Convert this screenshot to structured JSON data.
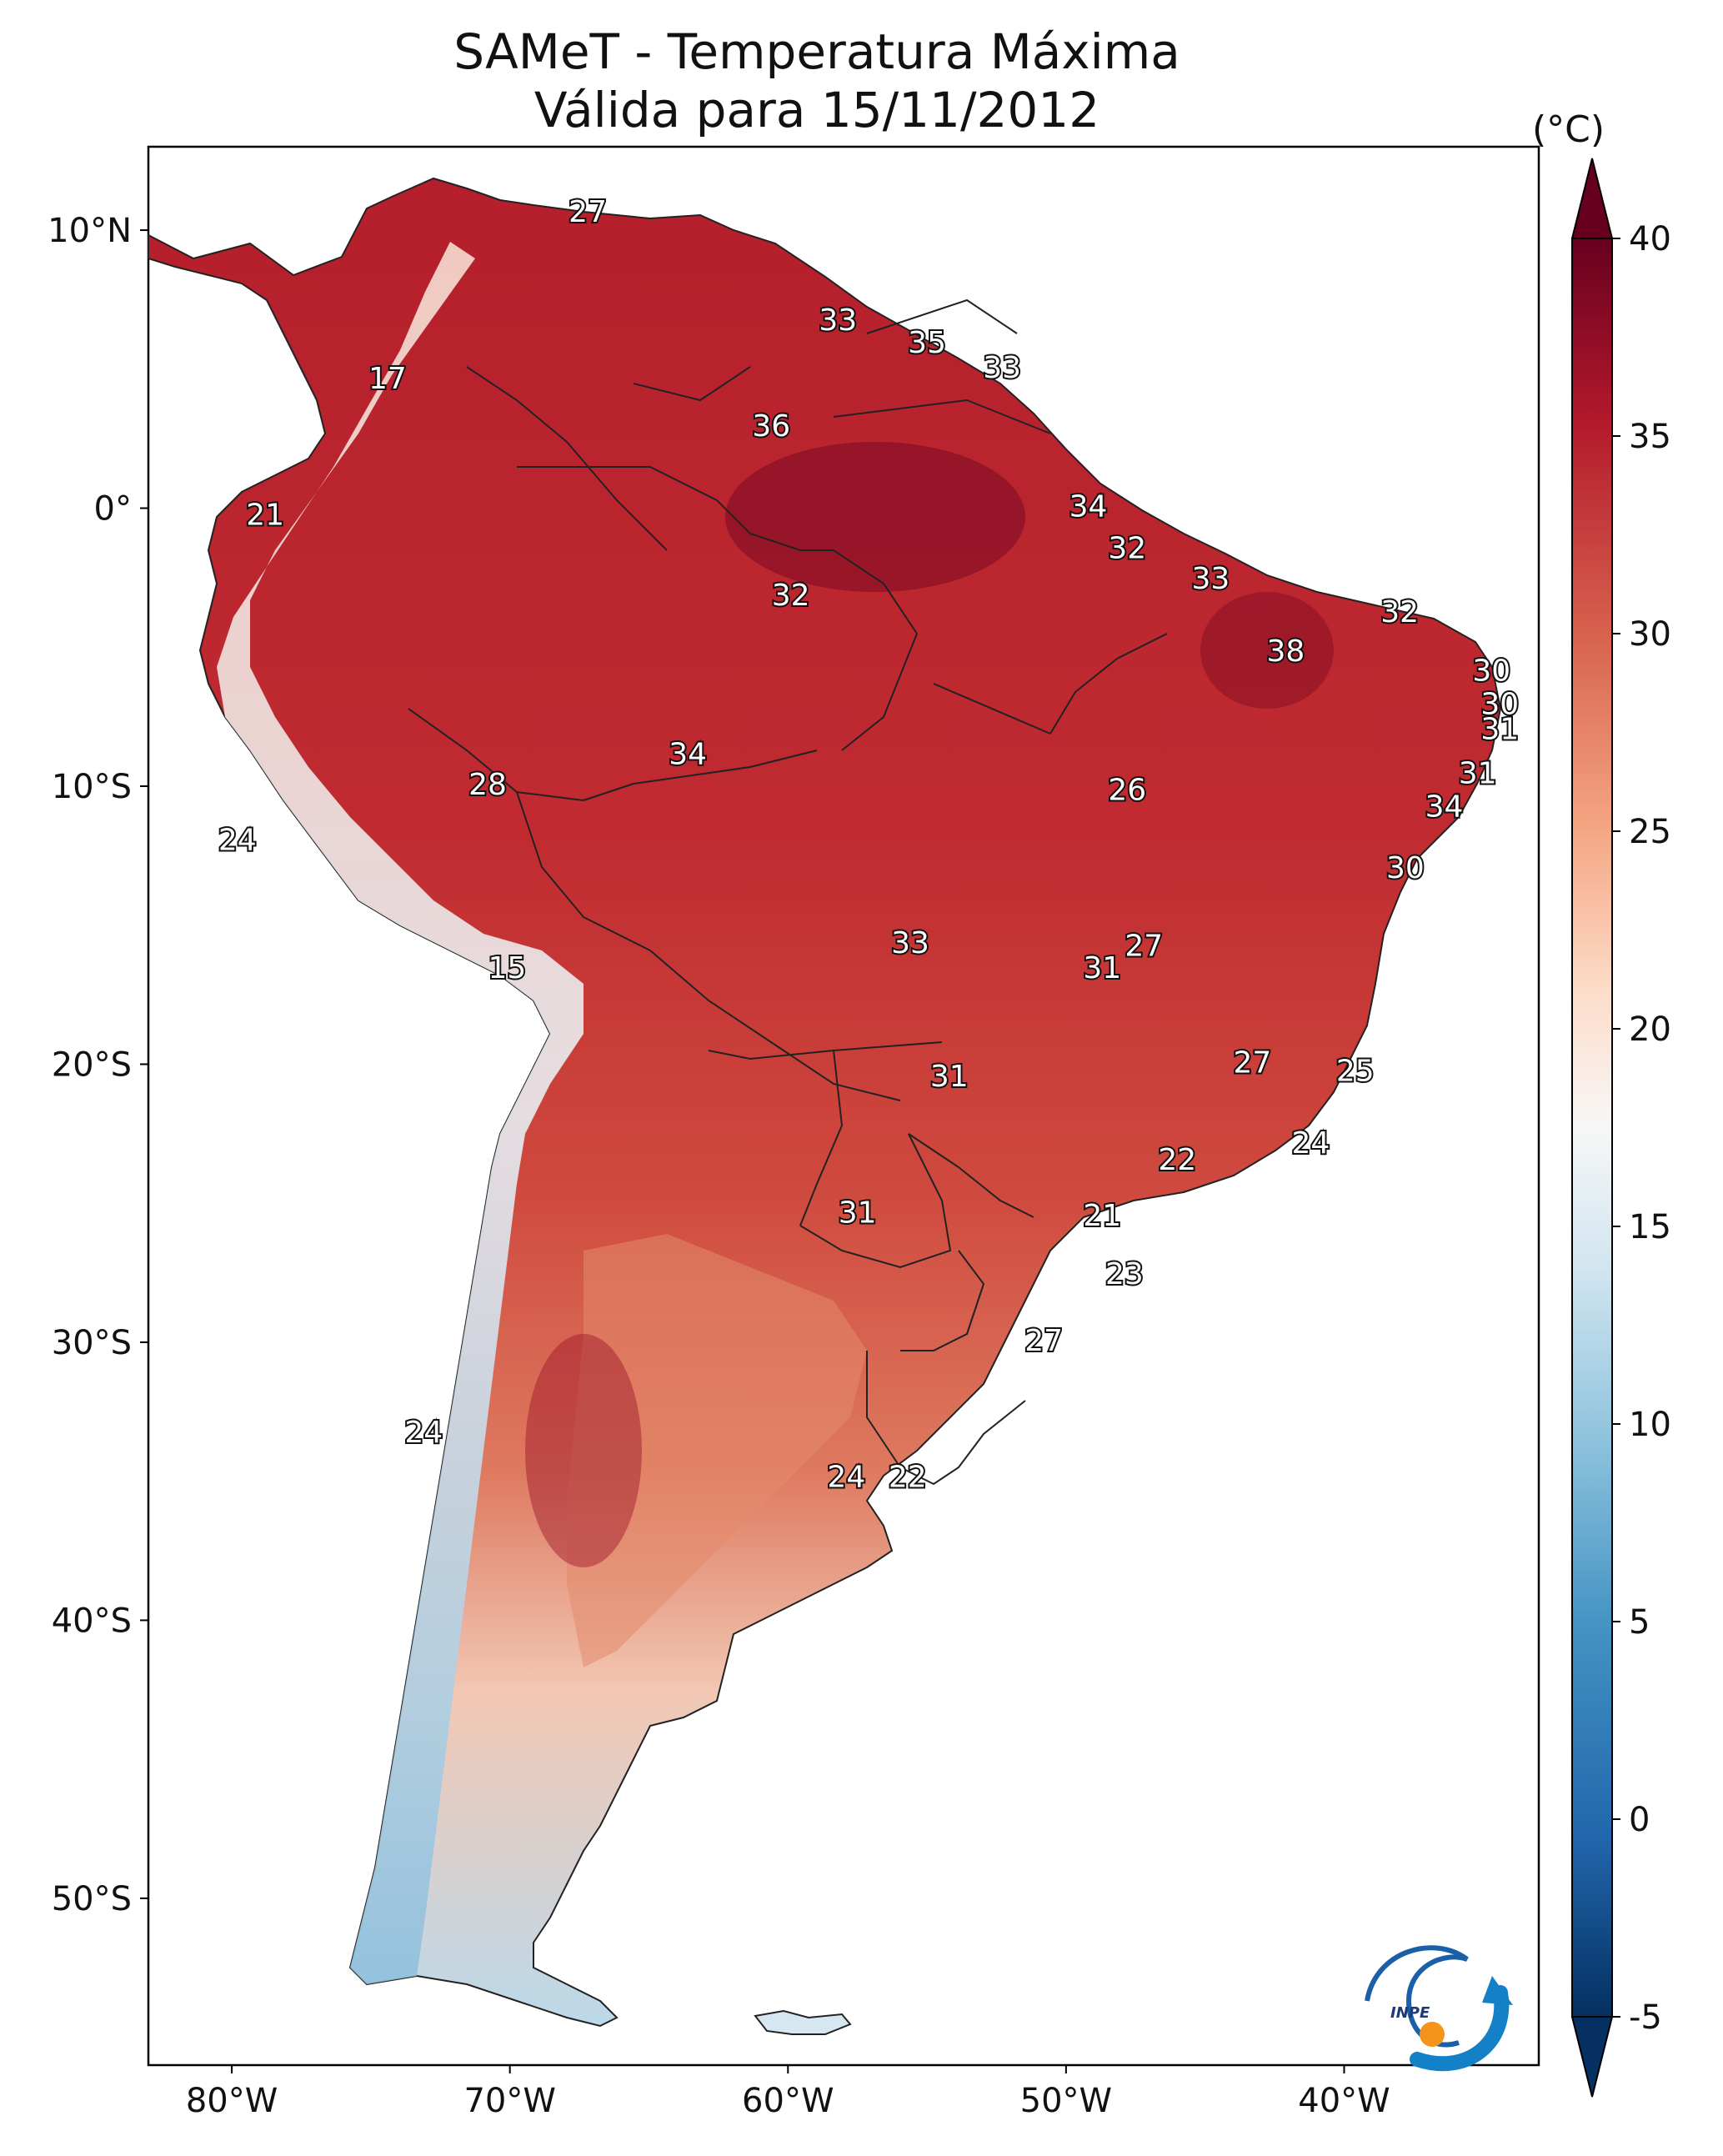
{
  "title": {
    "line1": "SAMeT - Temperatura Máxima",
    "line2": "Válida para 15/11/2012"
  },
  "colorbar": {
    "unit": "(°C)",
    "ticks": [
      "40",
      "35",
      "30",
      "25",
      "20",
      "15",
      "10",
      "5",
      "0",
      "-5"
    ],
    "tick_values": [
      40,
      35,
      30,
      25,
      20,
      15,
      10,
      5,
      0,
      -5
    ],
    "range": [
      -5,
      40
    ],
    "colors_high_to_low": [
      "#67001f",
      "#b2182b",
      "#d6604d",
      "#f4a582",
      "#fddbc7",
      "#f7f7f7",
      "#d1e5f0",
      "#92c5de",
      "#4393c3",
      "#2166ac",
      "#053061"
    ]
  },
  "axes": {
    "lon_ticks": [
      "80°W",
      "70°W",
      "60°W",
      "50°W",
      "40°W"
    ],
    "lon_values": [
      -80,
      -70,
      -60,
      -50,
      -40
    ],
    "lat_ticks": [
      "10°N",
      "0°",
      "10°S",
      "20°S",
      "30°S",
      "40°S",
      "50°S"
    ],
    "lat_values": [
      10,
      0,
      -10,
      -20,
      -30,
      -40,
      -50
    ],
    "lon_range": [
      -83,
      -33
    ],
    "lat_range": [
      -56,
      13
    ]
  },
  "map_labels": [
    {
      "value": "27",
      "lon": -67.2,
      "lat": 10.6
    },
    {
      "value": "17",
      "lon": -74.4,
      "lat": 4.6
    },
    {
      "value": "21",
      "lon": -78.8,
      "lat": -0.3
    },
    {
      "value": "33",
      "lon": -58.2,
      "lat": 6.7
    },
    {
      "value": "35",
      "lon": -55.0,
      "lat": 5.9
    },
    {
      "value": "33",
      "lon": -52.3,
      "lat": 5.0
    },
    {
      "value": "36",
      "lon": -60.6,
      "lat": 2.9
    },
    {
      "value": "34",
      "lon": -49.2,
      "lat": 0.0
    },
    {
      "value": "32",
      "lon": -47.8,
      "lat": -1.5
    },
    {
      "value": "33",
      "lon": -44.8,
      "lat": -2.6
    },
    {
      "value": "32",
      "lon": -59.9,
      "lat": -3.2
    },
    {
      "value": "32",
      "lon": -38.0,
      "lat": -3.8
    },
    {
      "value": "38",
      "lon": -42.1,
      "lat": -5.2
    },
    {
      "value": "30",
      "lon": -34.7,
      "lat": -5.9
    },
    {
      "value": "30",
      "lon": -34.4,
      "lat": -7.1
    },
    {
      "value": "31",
      "lon": -34.4,
      "lat": -8.0
    },
    {
      "value": "34",
      "lon": -63.6,
      "lat": -8.9
    },
    {
      "value": "28",
      "lon": -70.8,
      "lat": -10.0
    },
    {
      "value": "26",
      "lon": -47.8,
      "lat": -10.2
    },
    {
      "value": "31",
      "lon": -35.2,
      "lat": -9.6
    },
    {
      "value": "34",
      "lon": -36.4,
      "lat": -10.8
    },
    {
      "value": "24",
      "lon": -79.8,
      "lat": -12.0
    },
    {
      "value": "30",
      "lon": -37.8,
      "lat": -13.0
    },
    {
      "value": "33",
      "lon": -55.6,
      "lat": -15.7
    },
    {
      "value": "27",
      "lon": -47.2,
      "lat": -15.8
    },
    {
      "value": "31",
      "lon": -48.7,
      "lat": -16.6
    },
    {
      "value": "15",
      "lon": -70.1,
      "lat": -16.6
    },
    {
      "value": "27",
      "lon": -43.3,
      "lat": -20.0
    },
    {
      "value": "25",
      "lon": -39.6,
      "lat": -20.3
    },
    {
      "value": "31",
      "lon": -54.2,
      "lat": -20.5
    },
    {
      "value": "24",
      "lon": -41.2,
      "lat": -22.9
    },
    {
      "value": "22",
      "lon": -46.0,
      "lat": -23.5
    },
    {
      "value": "21",
      "lon": -48.7,
      "lat": -25.5
    },
    {
      "value": "31",
      "lon": -57.5,
      "lat": -25.4
    },
    {
      "value": "23",
      "lon": -47.9,
      "lat": -27.6
    },
    {
      "value": "27",
      "lon": -50.8,
      "lat": -30.0
    },
    {
      "value": "24",
      "lon": -73.1,
      "lat": -33.3
    },
    {
      "value": "24",
      "lon": -57.9,
      "lat": -34.9
    },
    {
      "value": "22",
      "lon": -55.7,
      "lat": -34.9
    }
  ]
}
